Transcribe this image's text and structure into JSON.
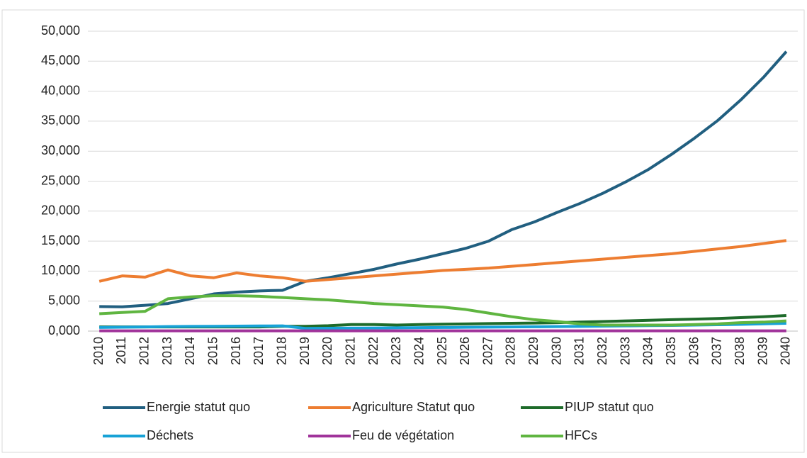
{
  "chart_data": {
    "type": "line",
    "categories": [
      "2010",
      "2011",
      "2012",
      "2013",
      "2014",
      "2015",
      "2016",
      "2017",
      "2018",
      "2019",
      "2020",
      "2021",
      "2022",
      "2023",
      "2024",
      "2025",
      "2026",
      "2027",
      "2028",
      "2029",
      "2030",
      "2031",
      "2032",
      "2033",
      "2034",
      "2035",
      "2036",
      "2037",
      "2038",
      "2039",
      "2040"
    ],
    "series": [
      {
        "name": "Energie statut quo",
        "color": "#215f80",
        "values": [
          4100,
          4050,
          4300,
          4600,
          5400,
          6200,
          6500,
          6700,
          6800,
          8300,
          8900,
          9600,
          10300,
          11200,
          12000,
          12900,
          13800,
          15000,
          16900,
          18200,
          19800,
          21300,
          23000,
          24900,
          27000,
          29500,
          32200,
          35100,
          38500,
          42300,
          46600
        ]
      },
      {
        "name": "Agriculture Statut quo",
        "color": "#ed7d31",
        "values": [
          8300,
          9200,
          9000,
          10200,
          9200,
          8900,
          9700,
          9200,
          8900,
          8300,
          8600,
          8900,
          9200,
          9500,
          9800,
          10100,
          10300,
          10500,
          10800,
          11100,
          11400,
          11700,
          12000,
          12300,
          12600,
          12900,
          13300,
          13700,
          14100,
          14600,
          15100
        ]
      },
      {
        "name": "PIUP statut quo",
        "color": "#1e6b2a",
        "values": [
          700,
          700,
          700,
          700,
          700,
          700,
          700,
          700,
          800,
          800,
          900,
          1100,
          1100,
          1000,
          1100,
          1150,
          1200,
          1250,
          1300,
          1350,
          1400,
          1500,
          1600,
          1700,
          1800,
          1900,
          2000,
          2100,
          2250,
          2400,
          2600
        ]
      },
      {
        "name": "Déchets",
        "color": "#17a2d6",
        "values": [
          600,
          650,
          700,
          750,
          780,
          800,
          830,
          850,
          870,
          450,
          470,
          500,
          520,
          550,
          580,
          600,
          630,
          660,
          690,
          720,
          750,
          790,
          830,
          870,
          910,
          950,
          1000,
          1060,
          1130,
          1210,
          1300
        ]
      },
      {
        "name": "Feu de végétation",
        "color": "#a0339a",
        "values": [
          50,
          50,
          50,
          50,
          50,
          50,
          50,
          50,
          50,
          50,
          50,
          50,
          50,
          50,
          50,
          50,
          50,
          50,
          50,
          50,
          50,
          50,
          50,
          50,
          50,
          50,
          50,
          50,
          50,
          50,
          50
        ]
      },
      {
        "name": "HFCs",
        "color": "#5fb540",
        "values": [
          2900,
          3100,
          3300,
          5400,
          5700,
          5900,
          5900,
          5800,
          5600,
          5400,
          5200,
          4900,
          4600,
          4400,
          4200,
          4000,
          3600,
          3000,
          2400,
          1900,
          1600,
          1200,
          1000,
          1000,
          1000,
          1000,
          1100,
          1200,
          1400,
          1500,
          1700
        ]
      }
    ],
    "ylim": [
      0,
      50000
    ],
    "yticks": [
      {
        "value": 0,
        "label": "0,000"
      },
      {
        "value": 5000,
        "label": "5,000"
      },
      {
        "value": 10000,
        "label": "10,000"
      },
      {
        "value": 15000,
        "label": "15,000"
      },
      {
        "value": 20000,
        "label": "20,000"
      },
      {
        "value": 25000,
        "label": "25,000"
      },
      {
        "value": 30000,
        "label": "30,000"
      },
      {
        "value": 35000,
        "label": "35,000"
      },
      {
        "value": 40000,
        "label": "40,000"
      },
      {
        "value": 45000,
        "label": "45,000"
      },
      {
        "value": 50000,
        "label": "50,000"
      }
    ],
    "grid": true,
    "legend": "bottom"
  }
}
